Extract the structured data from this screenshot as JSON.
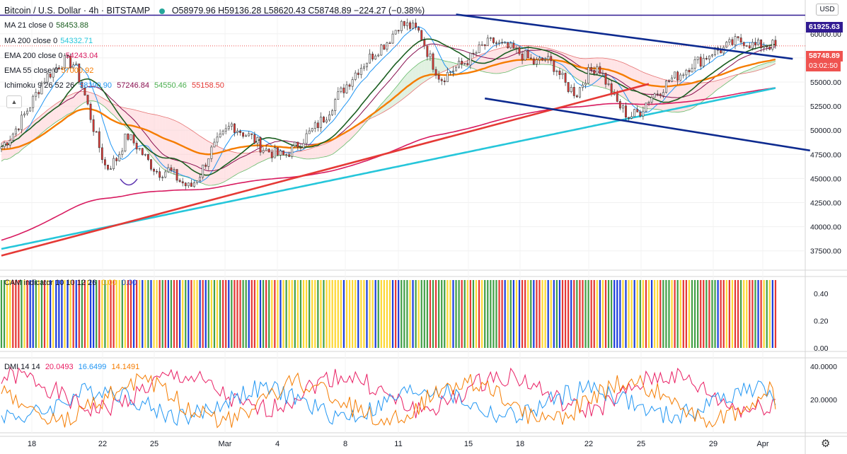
{
  "header": {
    "symbol": "Bitcoin / U.S. Dollar · 4h · BITSTAMP",
    "o": "O58979.96",
    "h": "H59136.28",
    "l": "L58620.43",
    "c": "C58748.89",
    "chg": "−224.27 (−0.38%)"
  },
  "indicators": {
    "ma21": {
      "label": "MA 21 close 0",
      "value": "58453.88",
      "color": "#1b5e20"
    },
    "ma200": {
      "label": "MA 200 close 0",
      "value": "54332.71",
      "color": "#26c6da"
    },
    "ema200": {
      "label": "EMA 200 close 0",
      "value": "54243.04",
      "color": "#d81b60"
    },
    "ema55": {
      "label": "EMA 55 close 0",
      "value": "57000.92",
      "color": "#f57c00"
    },
    "ichimoku": {
      "label": "Ichimoku 9 26 52 26",
      "v1": "58190.90",
      "v2": "57246.84",
      "v3": "54550.46",
      "v4": "55158.50",
      "c1": "#2196f3",
      "c2": "#880e4f",
      "c3": "#4caf50",
      "c4": "#e53935"
    },
    "cam": {
      "label": "CAM indicator 10 10 12 26",
      "v1": "0.00",
      "v2": "0.00"
    },
    "dmi": {
      "label": "DMI 14 14",
      "v1": "20.0493",
      "v2": "16.6499",
      "v3": "14.1491",
      "c1": "#e91e63",
      "c2": "#2196f3",
      "c3": "#f57c00"
    }
  },
  "price_axis": {
    "unit": "USD",
    "ticks": [
      "60000.00",
      "57500.00",
      "55000.00",
      "52500.00",
      "50000.00",
      "47500.00",
      "45000.00",
      "42500.00",
      "40000.00",
      "37500.00"
    ]
  },
  "cam_axis": {
    "ticks": [
      "0.40",
      "0.20",
      "0.00"
    ]
  },
  "dmi_axis": {
    "ticks": [
      "40.0000",
      "20.0000"
    ]
  },
  "time_axis": {
    "ticks": [
      "18",
      "22",
      "25",
      "Mar",
      "4",
      "8",
      "11",
      "15",
      "18",
      "22",
      "25",
      "29",
      "Apr"
    ]
  },
  "tags": {
    "high_level": {
      "text": "61925.63",
      "color": "#311b92"
    },
    "last_price": {
      "text": "58748.89",
      "color": "#ef5350"
    },
    "countdown": {
      "text": "03:02:50",
      "color": "#ef5350"
    }
  },
  "chart_data": {
    "type": "candlestick",
    "title": "Bitcoin / U.S. Dollar · 4h · BITSTAMP",
    "y_range": [
      35500,
      63500
    ],
    "x_range_bars": [
      0,
      270
    ],
    "horizontal_line": 61925.63,
    "last_close": 58748.89,
    "closes_sampled": [
      48300,
      49500,
      51200,
      53100,
      55200,
      56300,
      57200,
      56800,
      53500,
      49500,
      46000,
      47000,
      49500,
      48300,
      46800,
      45600,
      45900,
      44800,
      44000,
      45500,
      47800,
      49200,
      50600,
      49800,
      49200,
      48100,
      47600,
      47300,
      48200,
      49200,
      50300,
      51500,
      53300,
      54700,
      56200,
      57300,
      58400,
      59300,
      61000,
      60800,
      60100,
      57400,
      55300,
      56200,
      56800,
      57600,
      58700,
      59200,
      58600,
      58300,
      57700,
      56900,
      57400,
      56500,
      54600,
      53800,
      55800,
      56800,
      54600,
      52600,
      51400,
      51900,
      53400,
      54200,
      55300,
      55900,
      56900,
      57300,
      58200,
      58400,
      59100,
      59300,
      58700,
      58900,
      58749
    ],
    "trendlines": [
      {
        "name": "rising support",
        "color": "#e53935",
        "from": [
          0,
          37000
        ],
        "to": [
          225,
          54800
        ]
      },
      {
        "name": "upper channel",
        "color": "#0d2a8f",
        "from": [
          158,
          62000
        ],
        "to": [
          275,
          57400
        ]
      },
      {
        "name": "lower channel",
        "color": "#0d2a8f",
        "from": [
          168,
          53300
        ],
        "to": [
          281,
          47900
        ]
      }
    ],
    "dmi": {
      "plus_di": 20.0493,
      "minus_di": 16.6499,
      "adx": 14.1491,
      "y_range": [
        0,
        45
      ]
    },
    "cam_colors": [
      "#e53935",
      "#43a047",
      "#fdd835",
      "#1e3fdc"
    ]
  }
}
